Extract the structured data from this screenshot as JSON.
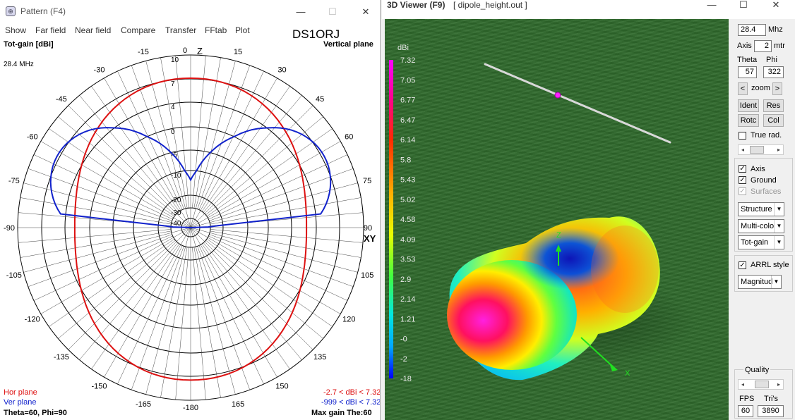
{
  "pattern_window": {
    "title": "Pattern   (F4)",
    "menu": [
      "Show",
      "Far field",
      "Near field",
      "Compare",
      "Transfer",
      "FFtab",
      "Plot"
    ],
    "callsign": "DS1ORJ",
    "gain_label": "Tot-gain [dBi]",
    "plane_label": "Vertical plane",
    "frequency": "28.4 MHz",
    "z_label": "Z",
    "xy_label": "XY",
    "angle_labels": [
      "0",
      "15",
      "30",
      "45",
      "60",
      "75",
      "90",
      "105",
      "120",
      "135",
      "150",
      "165",
      "-180",
      "-165",
      "-150",
      "-135",
      "-120",
      "-105",
      "-90",
      "-75",
      "-60",
      "-45",
      "-30",
      "-15"
    ],
    "ring_labels": [
      "10",
      "7",
      "4",
      "0",
      "-5",
      "-10",
      "-20",
      "-30",
      "-40"
    ],
    "hor_label": "Hor plane",
    "ver_label": "Ver plane",
    "hor_range": "-2.7 < dBi < 7.32",
    "ver_range": "-999 < dBi < 7.32",
    "theta_phi": "Theta=60, Phi=90",
    "max_gain": "Max gain The:60",
    "colors": {
      "hor": "#dd1111",
      "ver": "#1122cc"
    }
  },
  "viewer_window": {
    "title": "3D  Viewer (F9)",
    "filename": "[  dipole_height.out ]",
    "scale_unit": "dBi",
    "scale_values": [
      "7.32",
      "7.05",
      "6.77",
      "6.47",
      "6.14",
      "5.8",
      "5.43",
      "5.02",
      "4.58",
      "4.09",
      "3.53",
      "2.9",
      "2.14",
      "1.21",
      "-0",
      "-2",
      "-18"
    ],
    "axis_labels": {
      "z": "Z",
      "x": "X"
    },
    "panel": {
      "freq": "28.4",
      "freq_unit": "Mhz",
      "axis_label": "Axis",
      "axis_value": "2",
      "axis_unit": "mtr",
      "theta_label": "Theta",
      "phi_label": "Phi",
      "theta_value": "57",
      "phi_value": "322",
      "zoom_label": "zoom",
      "zoom_left": "<",
      "zoom_right": ">",
      "ident": "Ident",
      "res": "Res",
      "rotc": "Rotc",
      "col": "Col",
      "true_rad": "True rad.",
      "axis_chk": "Axis",
      "ground_chk": "Ground",
      "surfaces_chk": "Surfaces",
      "dd_structure": "Structure",
      "dd_multicolor": "Multi-colo",
      "dd_totgain": "Tot-gain",
      "arrl": "ARRL style",
      "dd_magnitude": "Magnitud",
      "quality": "Quality",
      "fps_label": "FPS",
      "tris_label": "Tri's",
      "fps": "60",
      "tris": "3890"
    }
  }
}
